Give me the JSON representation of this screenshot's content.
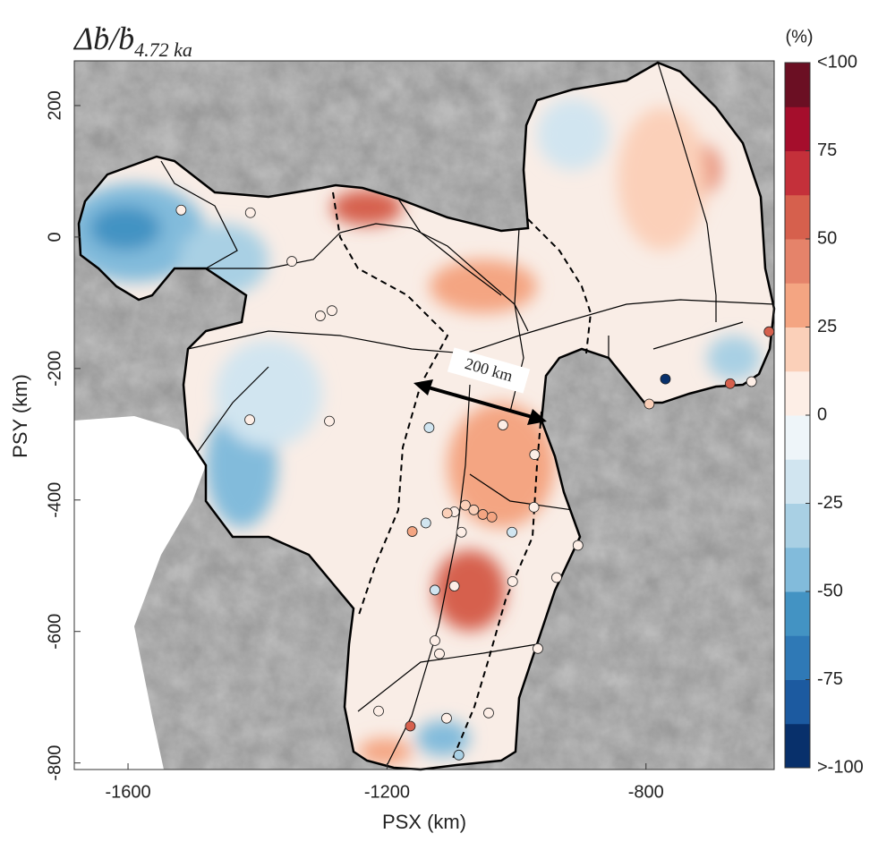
{
  "chart_data": {
    "type": "map",
    "title": "Δḃ/ḃ",
    "title_subscript": "4.72 ka",
    "x_label": "PSX (km)",
    "y_label": "PSY (km)",
    "xlim": [
      -1683,
      -602
    ],
    "ylim": [
      -810,
      268
    ],
    "xticks": [
      -1600,
      -1200,
      -800
    ],
    "yticks": [
      200,
      0,
      -200,
      -400,
      -600,
      -800
    ],
    "scale_bar": {
      "label": "200 km"
    },
    "colorbar": {
      "label": "(%)",
      "lim": [
        -100,
        100
      ],
      "ticks": [
        {
          "value": 100,
          "label": "<100"
        },
        75,
        50,
        25,
        0,
        -25,
        -50,
        -75,
        {
          "value": -100,
          "label": ">-100"
        }
      ],
      "colors": [
        "#08306b",
        "#1c5aa0",
        "#2f79b6",
        "#4393c3",
        "#82bbdb",
        "#a9d0e4",
        "#d1e5f0",
        "#eef5f9",
        "#fdeee6",
        "#fbd0b9",
        "#f4a582",
        "#e5836a",
        "#d6604d",
        "#c4303a",
        "#a50e2c",
        "#6b0f23"
      ]
    },
    "points": {
      "x": [
        -1518,
        -1411,
        -1347,
        -1303,
        -1285,
        -1412,
        -1289,
        -1135,
        -1021,
        -972,
        -973,
        -1140,
        -1161,
        -1085,
        -1007,
        -905,
        -1096,
        -1126,
        -1006,
        -938,
        -1126,
        -1119,
        -967,
        -1213,
        -1164,
        -1108,
        -1043,
        -1089,
        -795,
        -770,
        -670,
        -637,
        -610,
        -1096,
        -1079,
        -1066,
        -1052,
        -1038,
        -1107
      ],
      "y": [
        41,
        37,
        -37,
        -120,
        -112,
        -278,
        -280,
        -290,
        -286,
        -331,
        -411,
        -435,
        -448,
        -449,
        -449,
        -469,
        -531,
        -537,
        -524,
        -518,
        -614,
        -634,
        -626,
        -721,
        -744,
        -732,
        -724,
        -788,
        -254,
        -216,
        -223,
        -220,
        -144,
        -418,
        -408,
        -415,
        -422,
        -426,
        -420
      ],
      "values": [
        0,
        5,
        5,
        0,
        0,
        0,
        5,
        -15,
        10,
        5,
        5,
        -15,
        30,
        10,
        -15,
        10,
        5,
        -15,
        10,
        5,
        10,
        10,
        5,
        5,
        50,
        5,
        5,
        -30,
        15,
        -100,
        60,
        5,
        55,
        10,
        15,
        20,
        25,
        25,
        20
      ]
    }
  }
}
